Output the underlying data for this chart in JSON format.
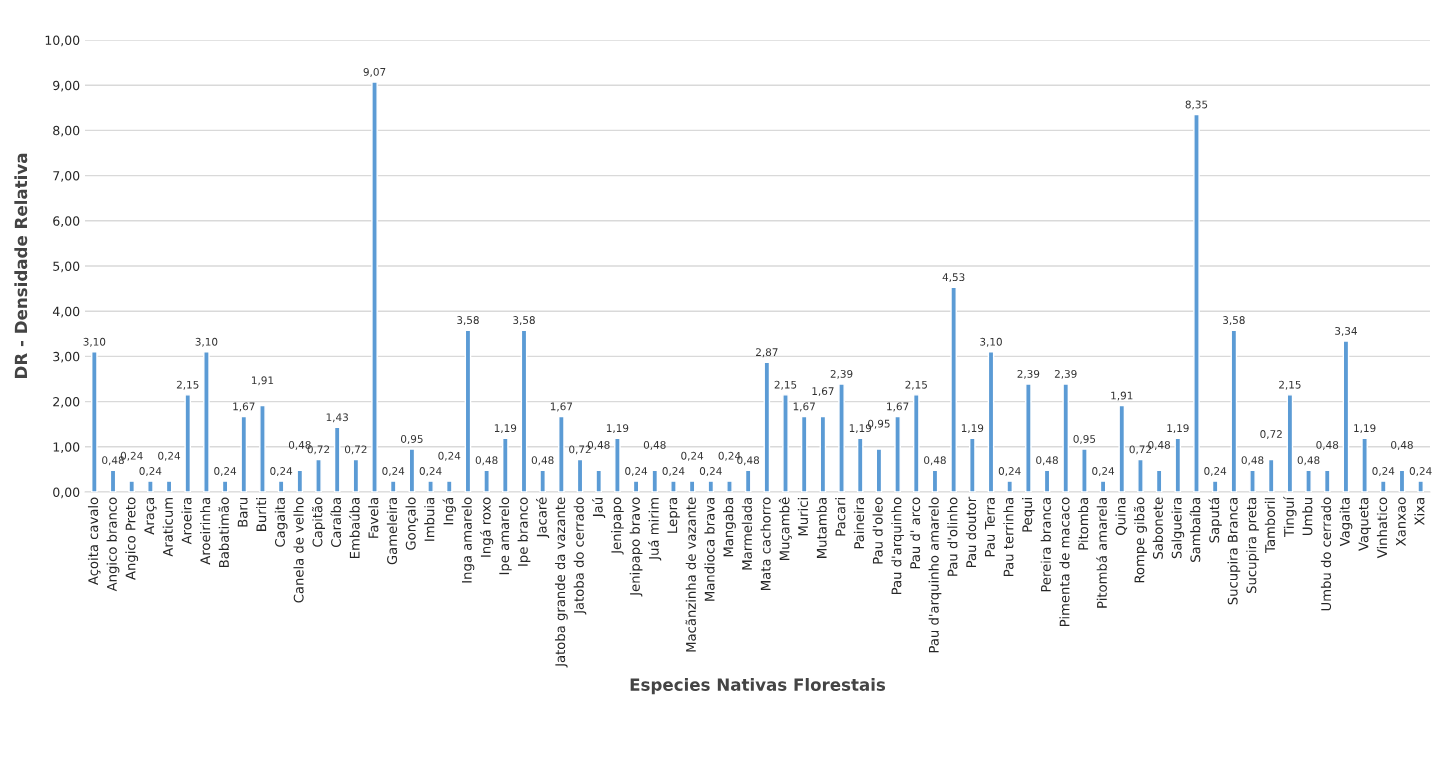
{
  "chart_data": {
    "type": "bar",
    "xlabel": "Especies Nativas Florestais",
    "ylabel": "DR - Densidade Relativa",
    "categories": [
      "Açoita cavalo",
      "Angico branco",
      "Angico Preto",
      "Araça",
      "Araticum",
      "Aroeira",
      "Aroeirinha",
      "Babatimão",
      "Baru",
      "Buriti",
      "Cagaita",
      "Canela de velho",
      "Capitão",
      "Caraíba",
      "Embaúba",
      "Favela",
      "Gameleira",
      "Gonçalo",
      "Imbuia",
      "Ingá",
      "Inga amarelo",
      "Ingá roxo",
      "Ipe amarelo",
      "Ipe branco",
      "Jacaré",
      "Jatoba grande da vazante",
      "Jatoba do cerrado",
      "Jaú",
      "Jenipapo",
      "Jenipapo bravo",
      "Juá mirim",
      "Lepra",
      "Macãnzinha de vazante",
      "Mandioca brava",
      "Mangaba",
      "Marmelada",
      "Mata cachorro",
      "Muçambê",
      "Murici",
      "Mutamba",
      "Pacari",
      "Paineira",
      "Pau d'oleo",
      "Pau d'arquinho",
      "Pau d' arco",
      "Pau d'arquinho amarelo",
      "Pau d'olinho",
      "Pau doutor",
      "Pau Terra",
      "Pau terrinha",
      "Pequi",
      "Pereira branca",
      "Pimenta de macaco",
      "Pitomba",
      "Pitombá amarela",
      "Quina",
      "Rompe gibão",
      "Sabonete",
      "Salgueira",
      "Sambaíba",
      "Saputá",
      "Sucupira Branca",
      "Sucupira preta",
      "Tamboril",
      "Tinguí",
      "Umbu",
      "Umbu do cerrado",
      "Vagaita",
      "Vaqueta",
      "Vinhatico",
      "Xanxao",
      "Xixa"
    ],
    "values": [
      3.1,
      0.48,
      0.24,
      0.24,
      0.24,
      2.15,
      3.1,
      0.24,
      1.67,
      1.91,
      0.24,
      0.48,
      0.72,
      1.43,
      0.72,
      9.07,
      0.24,
      0.95,
      0.24,
      0.24,
      3.58,
      0.48,
      1.19,
      3.58,
      0.48,
      1.67,
      0.72,
      0.48,
      1.19,
      0.24,
      0.48,
      0.24,
      0.24,
      0.24,
      0.24,
      0.48,
      2.87,
      2.15,
      1.67,
      1.67,
      2.39,
      1.19,
      0.95,
      1.67,
      2.15,
      0.48,
      4.53,
      1.19,
      3.1,
      0.24,
      2.39,
      0.48,
      2.39,
      0.95,
      0.24,
      1.91,
      0.72,
      0.48,
      1.19,
      8.35,
      0.24,
      3.58,
      0.48,
      0.72,
      2.15,
      0.48,
      0.48,
      3.34,
      1.19,
      0.24,
      0.48,
      0.24
    ],
    "value_labels": [
      "3,10",
      "0,48",
      "0,24",
      "0,24",
      "0,24",
      "2,15",
      "3,10",
      "0,24",
      "1,67",
      "1,91",
      "0,24",
      "0,48",
      "0,72",
      "1,43",
      "0,72",
      "9,07",
      "0,24",
      "0,95",
      "0,24",
      "0,24",
      "3,58",
      "0,48",
      "1,19",
      "3,58",
      "0,48",
      "1,67",
      "0,72",
      "0,48",
      "1,19",
      "0,24",
      "0,48",
      "0,24",
      "0,24",
      "0,24",
      "0,24",
      "0,48",
      "2,87",
      "2,15",
      "1,67",
      "1,67",
      "2,39",
      "1,19",
      "0,95",
      "1,67",
      "2,15",
      "0,48",
      "4,53",
      "1,19",
      "3,10",
      "0,24",
      "2,39",
      "0,48",
      "2,39",
      "0,95",
      "0,24",
      "1,91",
      "0,72",
      "0,48",
      "1,19",
      "8,35",
      "0,24",
      "3,58",
      "0,48",
      "0,72",
      "2,15",
      "0,48",
      "0,48",
      "3,34",
      "1,19",
      "0,24",
      "0,48",
      "0,24"
    ],
    "color": "#5b9bd5",
    "ylim": [
      0,
      10
    ],
    "yticks": [
      {
        "value": 0,
        "label": "0,00"
      },
      {
        "value": 1,
        "label": "1,00"
      },
      {
        "value": 2,
        "label": "2,00"
      },
      {
        "value": 3,
        "label": "3,00"
      },
      {
        "value": 4,
        "label": "4,00"
      },
      {
        "value": 5,
        "label": "5,00"
      },
      {
        "value": 6,
        "label": "6,00"
      },
      {
        "value": 7,
        "label": "7,00"
      },
      {
        "value": 8,
        "label": "8,00"
      },
      {
        "value": 9,
        "label": "9,00"
      },
      {
        "value": 10,
        "label": "10,00"
      }
    ],
    "grid": "y",
    "legend": false
  }
}
